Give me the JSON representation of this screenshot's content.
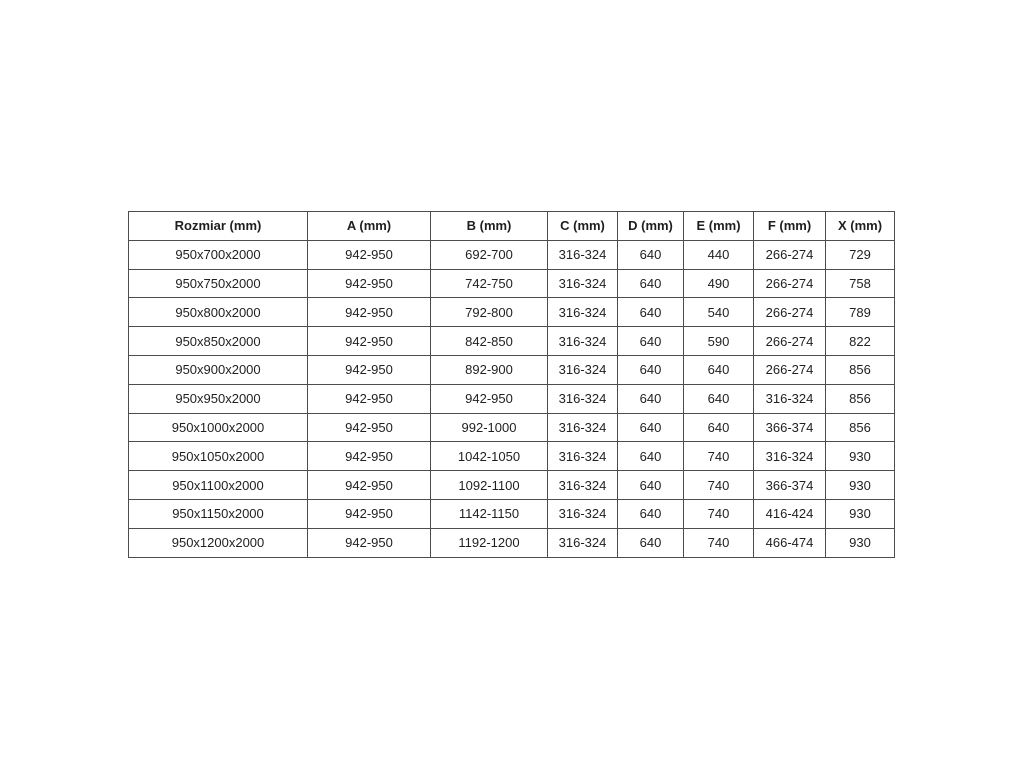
{
  "chart_data": {
    "type": "table",
    "title": "",
    "columns": [
      "Rozmiar (mm)",
      "A (mm)",
      "B (mm)",
      "C (mm)",
      "D (mm)",
      "E (mm)",
      "F (mm)",
      "X (mm)"
    ],
    "rows": [
      [
        "950x700x2000",
        "942-950",
        "692-700",
        "316-324",
        "640",
        "440",
        "266-274",
        "729"
      ],
      [
        "950x750x2000",
        "942-950",
        "742-750",
        "316-324",
        "640",
        "490",
        "266-274",
        "758"
      ],
      [
        "950x800x2000",
        "942-950",
        "792-800",
        "316-324",
        "640",
        "540",
        "266-274",
        "789"
      ],
      [
        "950x850x2000",
        "942-950",
        "842-850",
        "316-324",
        "640",
        "590",
        "266-274",
        "822"
      ],
      [
        "950x900x2000",
        "942-950",
        "892-900",
        "316-324",
        "640",
        "640",
        "266-274",
        "856"
      ],
      [
        "950x950x2000",
        "942-950",
        "942-950",
        "316-324",
        "640",
        "640",
        "316-324",
        "856"
      ],
      [
        "950x1000x2000",
        "942-950",
        "992-1000",
        "316-324",
        "640",
        "640",
        "366-374",
        "856"
      ],
      [
        "950x1050x2000",
        "942-950",
        "1042-1050",
        "316-324",
        "640",
        "740",
        "316-324",
        "930"
      ],
      [
        "950x1100x2000",
        "942-950",
        "1092-1100",
        "316-324",
        "640",
        "740",
        "366-374",
        "930"
      ],
      [
        "950x1150x2000",
        "942-950",
        "1142-1150",
        "316-324",
        "640",
        "740",
        "416-424",
        "930"
      ],
      [
        "950x1200x2000",
        "942-950",
        "1192-1200",
        "316-324",
        "640",
        "740",
        "466-474",
        "930"
      ]
    ],
    "colors": {
      "border": "#4d4d4d",
      "text": "#1f1f1f",
      "background": "#ffffff"
    }
  }
}
